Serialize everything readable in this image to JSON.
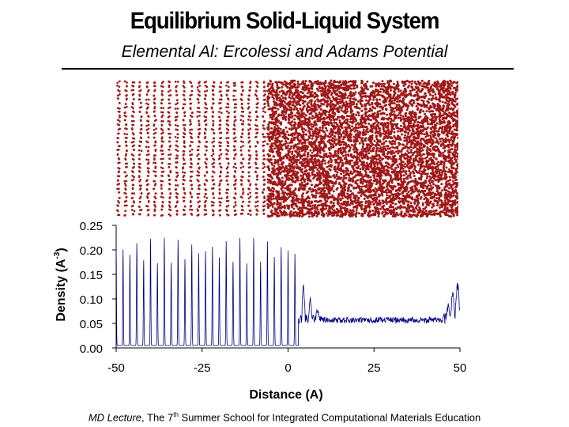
{
  "title": "Equilibrium Solid-Liquid System",
  "subtitle": "Elemental Al:  Ercolessi and Adams Potential",
  "footer": {
    "italic": "MD Lecture",
    "pre_sup": ", The 7",
    "sup": "th",
    "post_sup": " Summer School for Integrated Computational Materials Education"
  },
  "colors": {
    "atoms": "#a01818",
    "density_line": "#000080"
  },
  "chart_data": {
    "type": "line",
    "xlabel": "Distance (A)",
    "ylabel_main": "Density (A",
    "ylabel_sup": "-3",
    "ylabel_end": ")",
    "xlim": [
      -50,
      50
    ],
    "ylim": [
      0,
      0.25
    ],
    "x_ticks": [
      -50,
      -25,
      0,
      25,
      50
    ],
    "x_tick_labels": [
      "-50",
      "-25",
      "0",
      "25",
      "50"
    ],
    "y_ticks": [
      0,
      0.05,
      0.1,
      0.15,
      0.2,
      0.25
    ],
    "y_tick_labels": [
      "0.00",
      "0.05",
      "0.10",
      "0.15",
      "0.20",
      "0.25"
    ],
    "grid": false,
    "series": [
      {
        "regions": [
          {
            "phase": "solid",
            "x_range": [
              -50,
              3
            ],
            "peak_spacing": 2.0,
            "peak_density": 0.22,
            "baseline": 0.005
          },
          {
            "phase": "interface",
            "x_range": [
              3,
              10
            ],
            "mean_density": 0.06
          },
          {
            "phase": "liquid",
            "x_range": [
              10,
              45
            ],
            "mean_density": 0.057
          },
          {
            "phase": "edge",
            "x_range": [
              45,
              50
            ],
            "peak_density": 0.14
          }
        ]
      }
    ]
  }
}
